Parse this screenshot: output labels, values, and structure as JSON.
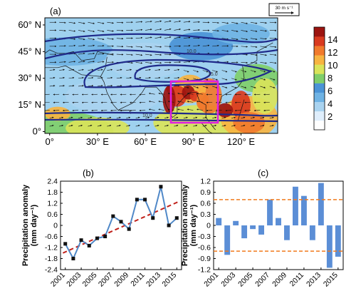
{
  "figure": {
    "panels": {
      "a": "(a)",
      "b": "(b)",
      "c": "(c)"
    }
  },
  "map": {
    "wind_reference": "30 m s⁻¹",
    "lat_ticks": [
      "60° N",
      "45° N",
      "30° N",
      "15° N",
      "0°"
    ],
    "lon_ticks": [
      "0°",
      "30° E",
      "60° E",
      "90° E",
      "120° E"
    ],
    "contour_labels": [
      "10.0",
      "15.0"
    ],
    "colorbar": {
      "ticks": [
        "14",
        "12",
        "10",
        "8",
        "6",
        "4",
        "2"
      ],
      "colors": [
        "#ffffff",
        "#dfeefc",
        "#a9d3f0",
        "#6fb3e4",
        "#4a93d6",
        "#7fce6a",
        "#d9e45a",
        "#f7b441",
        "#f17a2c",
        "#d93a1f",
        "#9c1410"
      ]
    },
    "highlight_box_color": "#e020e0",
    "contour_color": "#1f2a8a"
  },
  "chart_data": [
    {
      "type": "line",
      "panel": "(b)",
      "ylabel": "Precipitation anomaly (mm day⁻¹)",
      "x": [
        2001,
        2002,
        2003,
        2004,
        2005,
        2006,
        2007,
        2008,
        2009,
        2010,
        2011,
        2012,
        2013,
        2014,
        2015
      ],
      "values": [
        -1.0,
        -1.8,
        -0.8,
        -1.1,
        -0.7,
        -0.6,
        0.5,
        0.2,
        -0.2,
        1.4,
        1.4,
        0.4,
        2.1,
        0.0,
        0.4
      ],
      "trend": [
        -1.5,
        1.3
      ],
      "ylim": [
        -2.4,
        2.4
      ],
      "yticks": [
        "2.4",
        "1.8",
        "1.2",
        "0.6",
        "0",
        "-0.6",
        "-1.2",
        "-1.8",
        "-2.4"
      ],
      "xticks": [
        "2001",
        "2003",
        "2005",
        "2007",
        "2009",
        "2011",
        "2013",
        "2015"
      ],
      "line_color": "#4f88c8",
      "trend_color": "#c0201a"
    },
    {
      "type": "bar",
      "panel": "(c)",
      "ylabel": "Precipitation anomaly (mm day⁻¹)",
      "x": [
        2001,
        2002,
        2003,
        2004,
        2005,
        2006,
        2007,
        2008,
        2009,
        2010,
        2011,
        2012,
        2013,
        2014,
        2015
      ],
      "values": [
        0.2,
        -0.8,
        0.12,
        -0.35,
        -0.1,
        -0.25,
        0.7,
        0.2,
        -0.4,
        1.05,
        0.8,
        -0.4,
        1.15,
        -1.15,
        -0.85
      ],
      "thresholds": [
        0.7,
        -0.7
      ],
      "ylim": [
        -1.2,
        1.2
      ],
      "yticks": [
        "1.2",
        "0.9",
        "0.6",
        "0.3",
        "0",
        "-0.3",
        "-0.6",
        "-0.9",
        "-1.2"
      ],
      "xticks": [
        "2001",
        "2003",
        "2005",
        "2007",
        "2009",
        "2011",
        "2013",
        "2015"
      ],
      "bar_color": "#5b8ed6",
      "threshold_color": "#f07a1c"
    }
  ]
}
